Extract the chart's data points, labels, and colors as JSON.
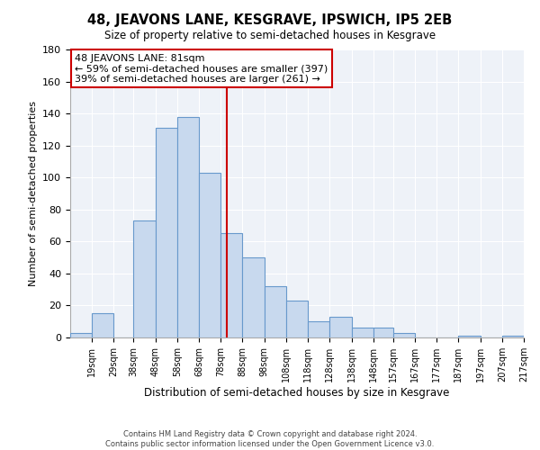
{
  "title": "48, JEAVONS LANE, KESGRAVE, IPSWICH, IP5 2EB",
  "subtitle": "Size of property relative to semi-detached houses in Kesgrave",
  "xlabel": "Distribution of semi-detached houses by size in Kesgrave",
  "ylabel": "Number of semi-detached properties",
  "bin_labels": [
    "19sqm",
    "29sqm",
    "38sqm",
    "48sqm",
    "58sqm",
    "68sqm",
    "78sqm",
    "88sqm",
    "98sqm",
    "108sqm",
    "118sqm",
    "128sqm",
    "138sqm",
    "148sqm",
    "157sqm",
    "167sqm",
    "177sqm",
    "187sqm",
    "197sqm",
    "207sqm",
    "217sqm"
  ],
  "bar_heights": [
    3,
    15,
    0,
    73,
    131,
    138,
    103,
    65,
    50,
    32,
    23,
    10,
    13,
    6,
    6,
    3,
    0,
    0,
    1,
    0,
    1
  ],
  "bar_color": "#c8d9ee",
  "bar_edge_color": "#6899cc",
  "property_line_x": 81,
  "property_line_color": "#cc0000",
  "annotation_title": "48 JEAVONS LANE: 81sqm",
  "annotation_line1": "← 59% of semi-detached houses are smaller (397)",
  "annotation_line2": "39% of semi-detached houses are larger (261) →",
  "annotation_box_color": "#ffffff",
  "annotation_box_edge": "#cc0000",
  "ylim": [
    0,
    180
  ],
  "yticks": [
    0,
    20,
    40,
    60,
    80,
    100,
    120,
    140,
    160,
    180
  ],
  "bin_edges": [
    9,
    19,
    29,
    38,
    48,
    58,
    68,
    78,
    88,
    98,
    108,
    118,
    128,
    138,
    148,
    157,
    167,
    177,
    187,
    197,
    207,
    217
  ],
  "footer_line1": "Contains HM Land Registry data © Crown copyright and database right 2024.",
  "footer_line2": "Contains public sector information licensed under the Open Government Licence v3.0."
}
